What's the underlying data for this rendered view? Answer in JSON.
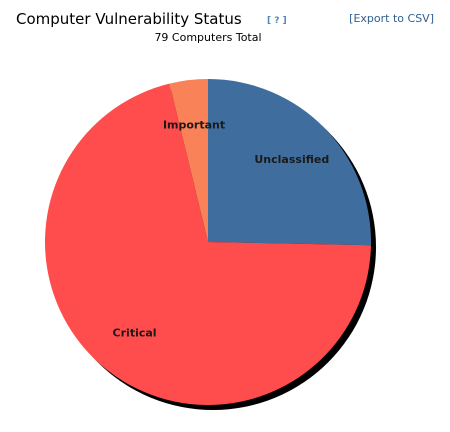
{
  "chart_data": {
    "type": "pie",
    "title": "Computer Vulnerability Status",
    "help_link": "[ ? ]",
    "export_link": "[Export to CSV]",
    "subtitle": "79 Computers Total",
    "categories": [
      "Unclassified",
      "Critical",
      "Important"
    ],
    "values": [
      20,
      56,
      3
    ],
    "colors": [
      "#3f6e9e",
      "#ff4c4c",
      "#fa8258"
    ]
  }
}
